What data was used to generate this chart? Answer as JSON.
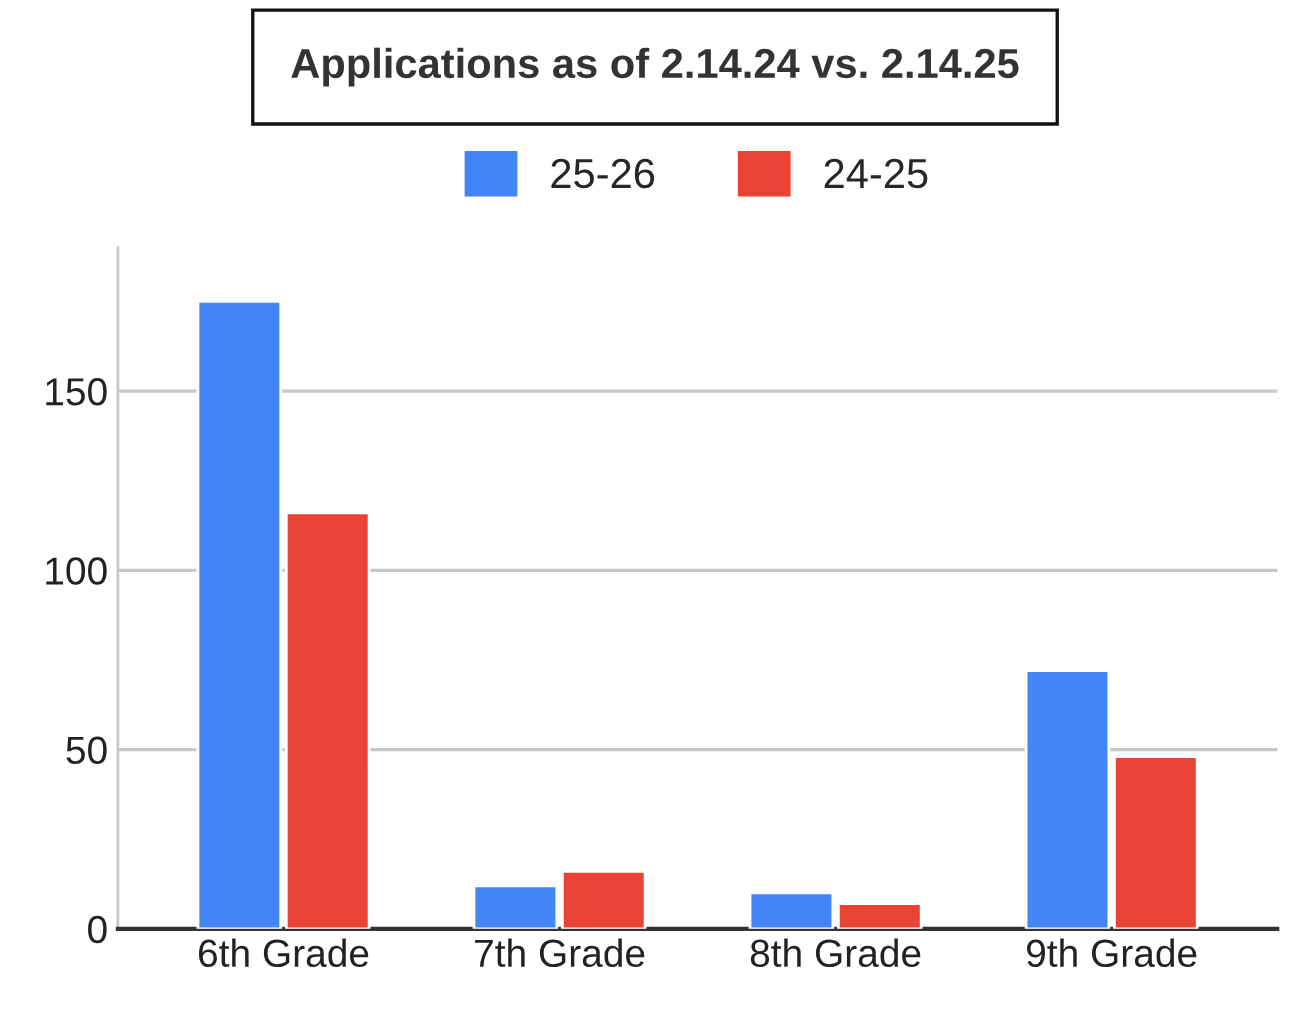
{
  "chart_data": {
    "type": "bar",
    "title": "Applications as of 2.14.24 vs. 2.14.25",
    "categories": [
      "6th Grade",
      "7th Grade",
      "8th Grade",
      "9th Grade"
    ],
    "series": [
      {
        "name": "25-26",
        "color": "#4285f4",
        "values": [
          175,
          12,
          10,
          72
        ]
      },
      {
        "name": "24-25",
        "color": "#ea4335",
        "values": [
          116,
          16,
          7,
          48
        ]
      }
    ],
    "ylim": [
      0,
      190
    ],
    "yticks": [
      0,
      50,
      100,
      150
    ],
    "grid": "y",
    "legend": "top"
  }
}
